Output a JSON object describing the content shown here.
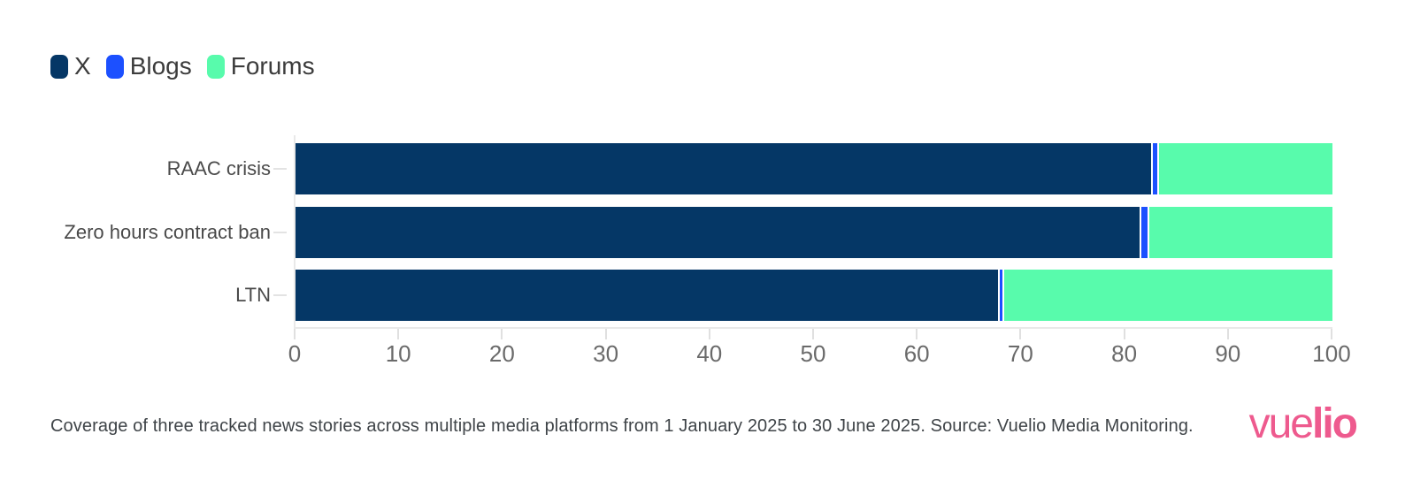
{
  "chart_data": {
    "type": "bar",
    "orientation": "horizontal",
    "stacked": true,
    "categories": [
      "RAAC crisis",
      "Zero hours contract ban",
      "LTN"
    ],
    "series": [
      {
        "name": "X",
        "color": "#053766",
        "values": [
          82.8,
          81.7,
          68.0
        ]
      },
      {
        "name": "Blogs",
        "color": "#1c50ff",
        "values": [
          0.4,
          0.6,
          0.2
        ]
      },
      {
        "name": "Forums",
        "color": "#58fbac",
        "values": [
          16.8,
          17.7,
          31.8
        ]
      }
    ],
    "xlim": [
      0,
      100
    ],
    "x_ticks": [
      0,
      10,
      20,
      30,
      40,
      50,
      60,
      70,
      80,
      90,
      100
    ],
    "grid": false,
    "legend_position": "top-left"
  },
  "caption": "Coverage of three tracked news stories across multiple media platforms from 1 January 2025 to 30 June 2025. Source: Vuelio Media Monitoring.",
  "branding": {
    "logo_light": "vue",
    "logo_bold": "lio",
    "logo_color": "#ee5a8e"
  }
}
